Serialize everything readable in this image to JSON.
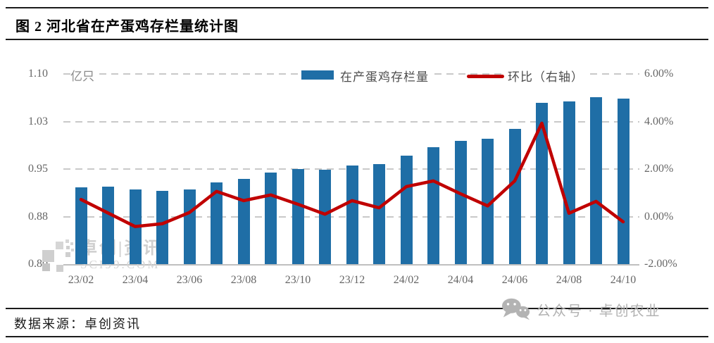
{
  "header": {
    "title": "图 2 河北省在产蛋鸡存栏量统计图"
  },
  "footer": {
    "source": "数据来源：卓创资讯",
    "wechat_watermark": "公众号 · 卓创农业"
  },
  "watermark": {
    "brand": "卓创|资讯",
    "site": "SCI99.COM"
  },
  "colors": {
    "bar": "#1f6ea6",
    "line": "#c00000",
    "grid": "#c9c9c9",
    "axis_text": "#666666",
    "watermark_gray": "#cfcfcf",
    "wechat_gray": "#b3b3b3"
  },
  "chart_data": {
    "type": "bar+line",
    "title": "河北省在产蛋鸡存栏量统计图",
    "unit_label": "亿只",
    "categories": [
      "23/02",
      "23/03",
      "23/04",
      "23/05",
      "23/06",
      "23/07",
      "23/08",
      "23/09",
      "23/10",
      "23/11",
      "23/12",
      "24/01",
      "24/02",
      "24/03",
      "24/04",
      "24/05",
      "24/06",
      "24/07",
      "24/08",
      "24/09",
      "24/10"
    ],
    "x_tick_labels": [
      "23/02",
      "23/04",
      "23/06",
      "23/08",
      "23/10",
      "23/12",
      "24/02",
      "24/04",
      "24/06",
      "24/08",
      "24/10"
    ],
    "series": [
      {
        "name": "在产蛋鸡存栏量",
        "type": "bar",
        "axis": "left",
        "color": "#1f6ea6",
        "values": [
          0.921,
          0.922,
          0.918,
          0.916,
          0.918,
          0.929,
          0.934,
          0.944,
          0.95,
          0.949,
          0.956,
          0.958,
          0.971,
          0.985,
          0.994,
          0.998,
          1.013,
          1.054,
          1.057,
          1.063,
          1.061
        ]
      },
      {
        "name": "环比（右轴）",
        "type": "line",
        "axis": "right",
        "color": "#c00000",
        "values_pct": [
          0.72,
          0.15,
          -0.42,
          -0.3,
          0.17,
          1.06,
          0.67,
          0.91,
          0.52,
          0.1,
          0.67,
          0.37,
          1.26,
          1.5,
          0.96,
          0.45,
          1.5,
          3.93,
          0.14,
          0.64,
          -0.22
        ]
      }
    ],
    "left_axis": {
      "min": 0.8,
      "max": 1.1,
      "ticks": [
        "1.10",
        "1.03",
        "0.95",
        "0.88",
        "0.80"
      ]
    },
    "right_axis": {
      "min": -2.0,
      "max": 6.0,
      "ticks": [
        "6.00%",
        "4.00%",
        "2.00%",
        "0.00%",
        "-2.00%"
      ]
    },
    "grid": "horizontal-dashed",
    "legend_position": "top"
  }
}
